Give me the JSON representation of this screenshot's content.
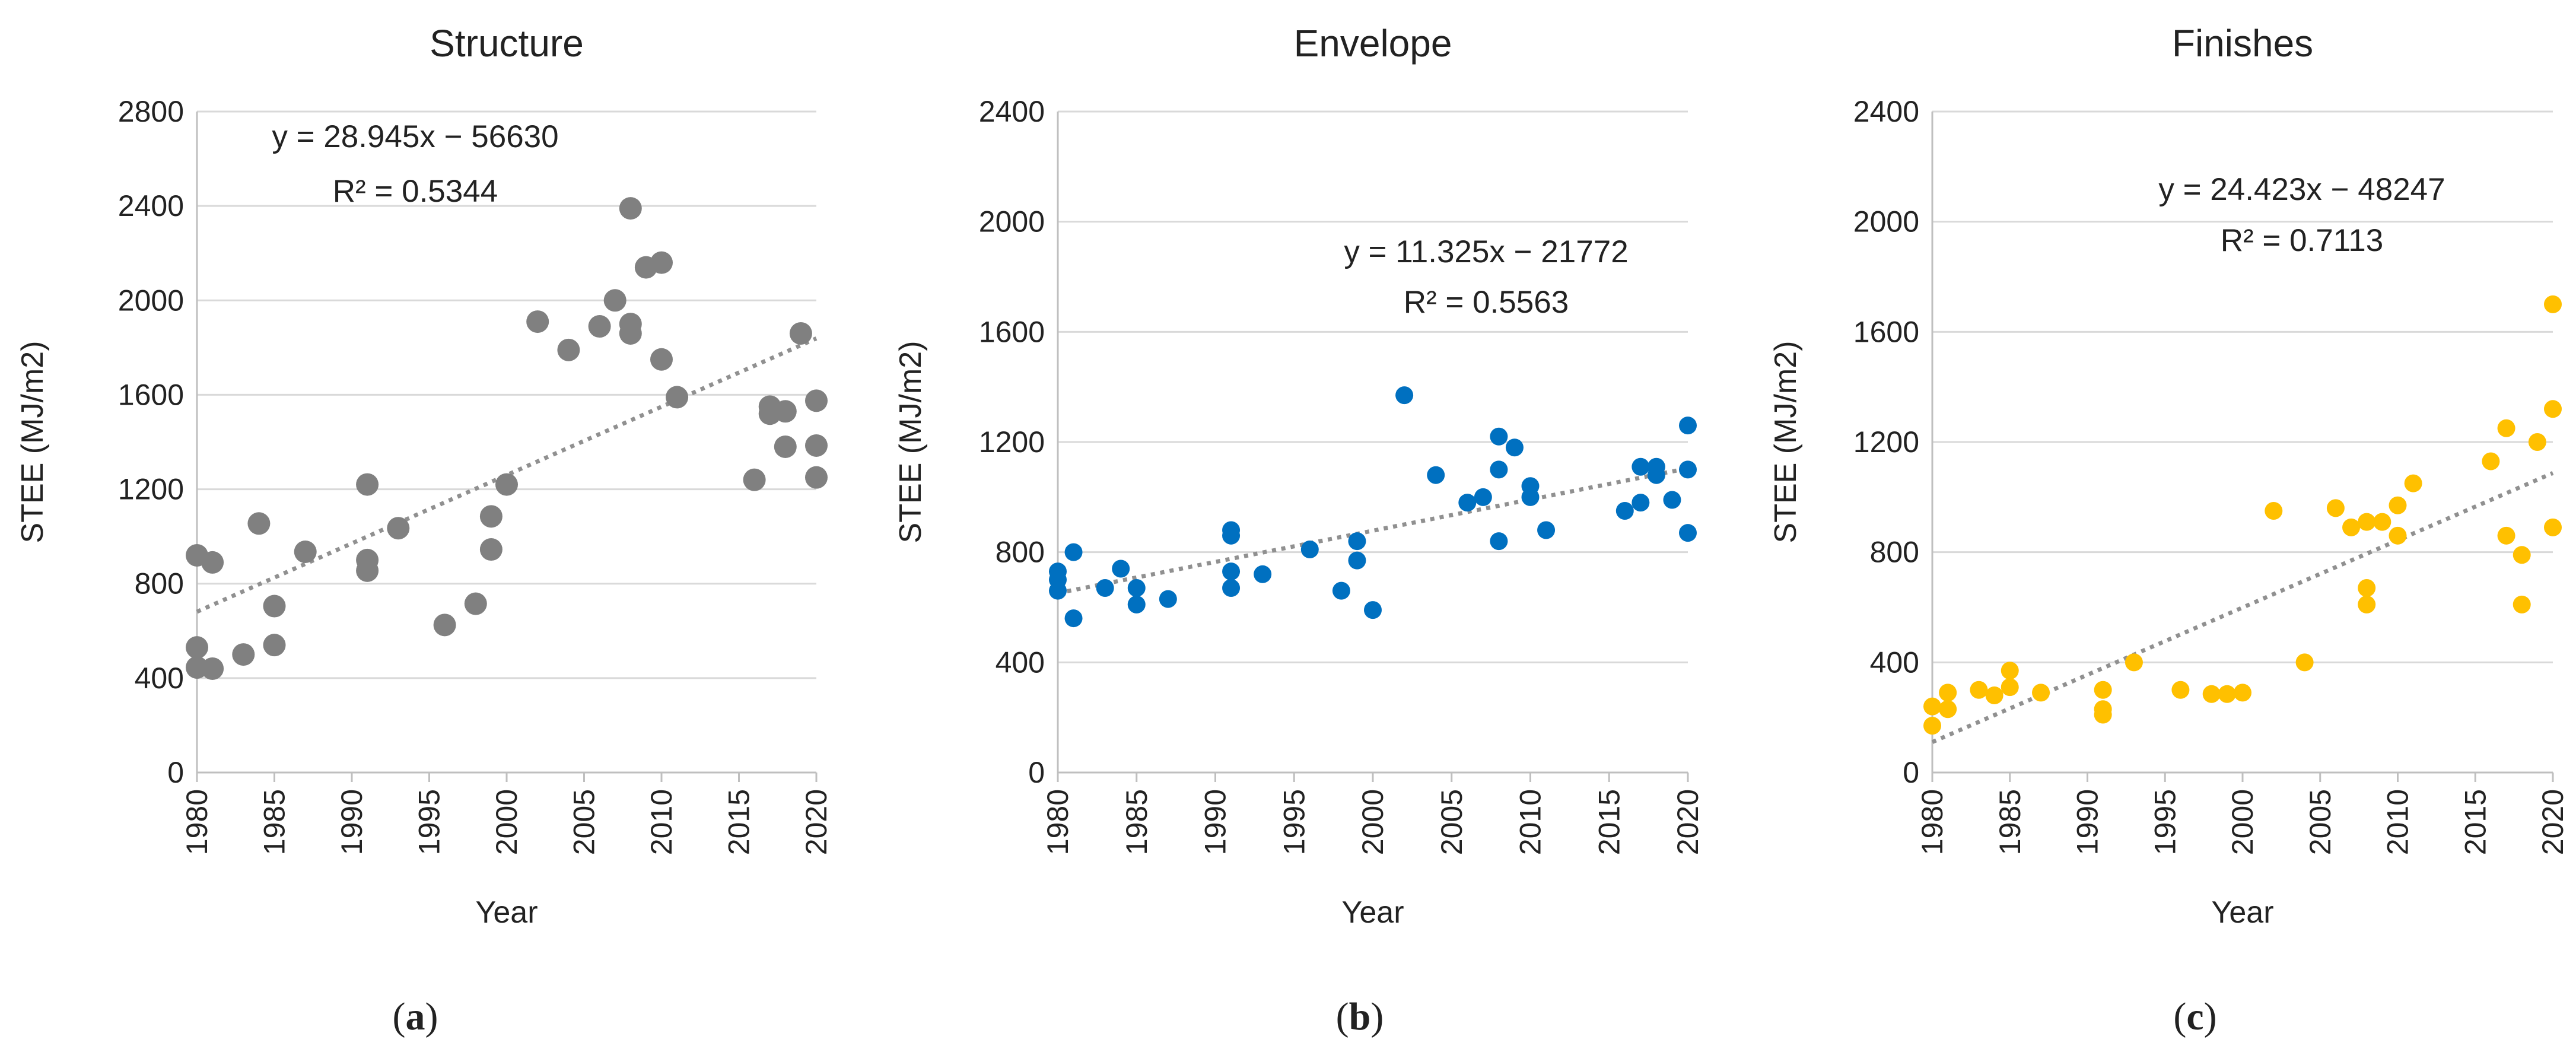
{
  "figure": {
    "panels": [
      "structure",
      "envelope",
      "finishes"
    ]
  },
  "chart_data": [
    {
      "id": "structure",
      "type": "scatter",
      "title": "Structure",
      "xlabel": "Year",
      "ylabel": "STEE (MJ/m2)",
      "xlim": [
        1980,
        2020
      ],
      "ylim": [
        0,
        2800
      ],
      "xticks": [
        1980,
        1985,
        1990,
        1995,
        2000,
        2005,
        2010,
        2015,
        2020
      ],
      "yticks": [
        0,
        400,
        800,
        1200,
        1600,
        2000,
        2400,
        2800
      ],
      "grid": "horizontal",
      "color": "#808080",
      "trendline": {
        "slope": 28.945,
        "intercept": -56630,
        "color": "#909090",
        "style": "dotted"
      },
      "equation": "y = 28.945x − 56630",
      "r2": "R² = 0.5344",
      "caption_open": "(",
      "caption_letter": "a",
      "caption_close": ")",
      "points": [
        [
          1980,
          920
        ],
        [
          1980,
          530
        ],
        [
          1980,
          445
        ],
        [
          1981,
          890
        ],
        [
          1981,
          440
        ],
        [
          1983,
          500
        ],
        [
          1984,
          1055
        ],
        [
          1985,
          705
        ],
        [
          1985,
          540
        ],
        [
          1987,
          935
        ],
        [
          1991,
          1220
        ],
        [
          1991,
          900
        ],
        [
          1991,
          855
        ],
        [
          1993,
          1035
        ],
        [
          1996,
          625
        ],
        [
          1998,
          715
        ],
        [
          1999,
          1085
        ],
        [
          1999,
          945
        ],
        [
          2000,
          1220
        ],
        [
          2002,
          1910
        ],
        [
          2004,
          1790
        ],
        [
          2006,
          1890
        ],
        [
          2007,
          2000
        ],
        [
          2008,
          2390
        ],
        [
          2008,
          1900
        ],
        [
          2008,
          1860
        ],
        [
          2009,
          2140
        ],
        [
          2010,
          2160
        ],
        [
          2010,
          1750
        ],
        [
          2011,
          1590
        ],
        [
          2016,
          1240
        ],
        [
          2017,
          1550
        ],
        [
          2017,
          1520
        ],
        [
          2018,
          1530
        ],
        [
          2018,
          1380
        ],
        [
          2019,
          1860
        ],
        [
          2020,
          1575
        ],
        [
          2020,
          1385
        ],
        [
          2020,
          1250
        ]
      ]
    },
    {
      "id": "envelope",
      "type": "scatter",
      "title": "Envelope",
      "xlabel": "Year",
      "ylabel": "STEE (MJ/m2)",
      "xlim": [
        1980,
        2020
      ],
      "ylim": [
        0,
        2400
      ],
      "xticks": [
        1980,
        1985,
        1990,
        1995,
        2000,
        2005,
        2010,
        2015,
        2020
      ],
      "yticks": [
        0,
        400,
        800,
        1200,
        1600,
        2000,
        2400
      ],
      "grid": "horizontal",
      "color": "#0070C0",
      "trendline": {
        "slope": 11.325,
        "intercept": -21772,
        "color": "#909090",
        "style": "dotted"
      },
      "equation": "y = 11.325x − 21772",
      "r2": "R² = 0.5563",
      "caption_open": "(",
      "caption_letter": "b",
      "caption_close": ")",
      "points": [
        [
          1980,
          730
        ],
        [
          1980,
          700
        ],
        [
          1980,
          660
        ],
        [
          1981,
          800
        ],
        [
          1981,
          560
        ],
        [
          1983,
          670
        ],
        [
          1984,
          740
        ],
        [
          1985,
          670
        ],
        [
          1985,
          610
        ],
        [
          1987,
          630
        ],
        [
          1991,
          880
        ],
        [
          1991,
          860
        ],
        [
          1991,
          730
        ],
        [
          1991,
          670
        ],
        [
          1993,
          720
        ],
        [
          1996,
          810
        ],
        [
          1998,
          660
        ],
        [
          1999,
          840
        ],
        [
          1999,
          770
        ],
        [
          2000,
          590
        ],
        [
          2002,
          1370
        ],
        [
          2004,
          1080
        ],
        [
          2006,
          980
        ],
        [
          2007,
          1000
        ],
        [
          2008,
          1220
        ],
        [
          2008,
          1100
        ],
        [
          2008,
          840
        ],
        [
          2009,
          1180
        ],
        [
          2010,
          1040
        ],
        [
          2010,
          1000
        ],
        [
          2011,
          880
        ],
        [
          2016,
          950
        ],
        [
          2017,
          1110
        ],
        [
          2017,
          980
        ],
        [
          2018,
          1110
        ],
        [
          2018,
          1080
        ],
        [
          2019,
          990
        ],
        [
          2020,
          1260
        ],
        [
          2020,
          1100
        ],
        [
          2020,
          870
        ]
      ]
    },
    {
      "id": "finishes",
      "type": "scatter",
      "title": "Finishes",
      "xlabel": "Year",
      "ylabel": "STEE (MJ/m2)",
      "xlim": [
        1980,
        2020
      ],
      "ylim": [
        0,
        2400
      ],
      "xticks": [
        1980,
        1985,
        1990,
        1995,
        2000,
        2005,
        2010,
        2015,
        2020
      ],
      "yticks": [
        0,
        400,
        800,
        1200,
        1600,
        2000,
        2400
      ],
      "grid": "horizontal",
      "color": "#FFC000",
      "trendline": {
        "slope": 24.423,
        "intercept": -48247,
        "color": "#909090",
        "style": "dotted"
      },
      "equation": "y = 24.423x − 48247",
      "r2": "R² = 0.7113",
      "caption_open": "(",
      "caption_letter": "c",
      "caption_close": ")",
      "points": [
        [
          1980,
          240
        ],
        [
          1980,
          170
        ],
        [
          1981,
          290
        ],
        [
          1981,
          230
        ],
        [
          1983,
          300
        ],
        [
          1984,
          280
        ],
        [
          1985,
          370
        ],
        [
          1985,
          310
        ],
        [
          1987,
          290
        ],
        [
          1991,
          300
        ],
        [
          1991,
          230
        ],
        [
          1991,
          210
        ],
        [
          1993,
          400
        ],
        [
          1996,
          300
        ],
        [
          1998,
          285
        ],
        [
          1999,
          285
        ],
        [
          2000,
          290
        ],
        [
          2002,
          950
        ],
        [
          2004,
          400
        ],
        [
          2006,
          960
        ],
        [
          2007,
          890
        ],
        [
          2008,
          910
        ],
        [
          2008,
          670
        ],
        [
          2008,
          610
        ],
        [
          2009,
          910
        ],
        [
          2010,
          970
        ],
        [
          2010,
          860
        ],
        [
          2011,
          1050
        ],
        [
          2016,
          1130
        ],
        [
          2017,
          1250
        ],
        [
          2017,
          860
        ],
        [
          2018,
          790
        ],
        [
          2018,
          610
        ],
        [
          2019,
          1200
        ],
        [
          2020,
          1700
        ],
        [
          2020,
          1320
        ],
        [
          2020,
          890
        ]
      ]
    }
  ]
}
